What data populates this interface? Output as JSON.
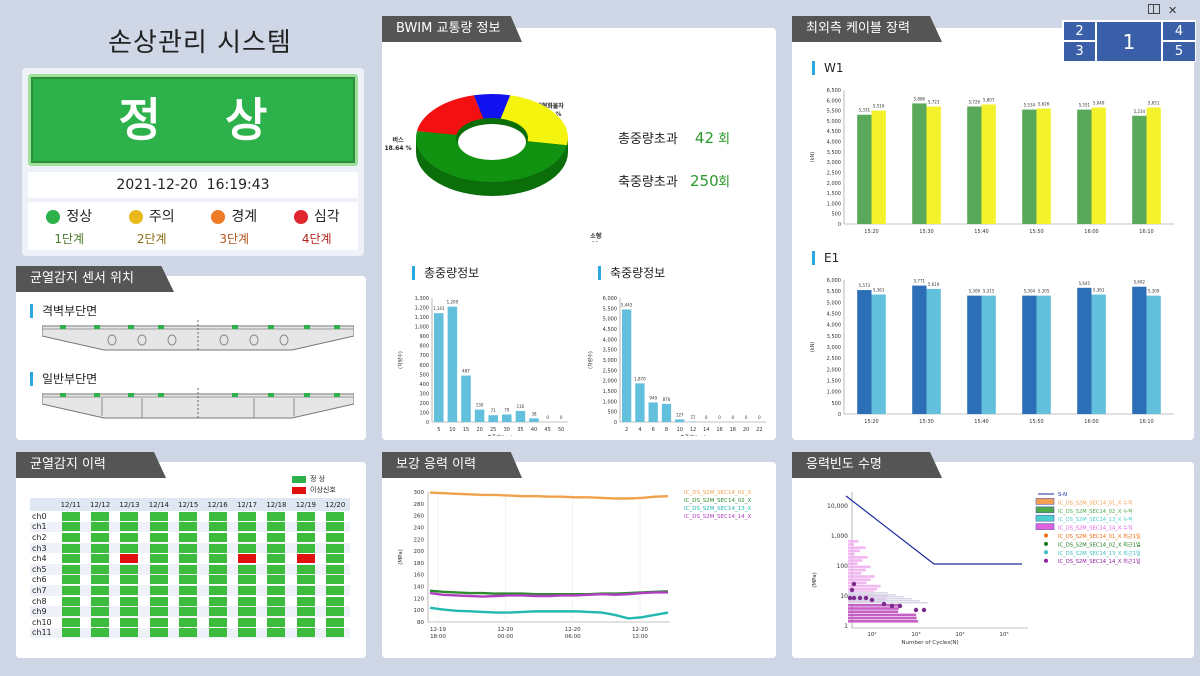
{
  "system_title": "손상관리 시스템",
  "status_label": "정    상",
  "timestamp": "2021-12-20  16:19:43",
  "colors": {
    "normal": "#2db14a",
    "caution": "#e8b81c",
    "warning": "#ef7a28",
    "severe": "#e0262e",
    "accent": "#2aa7df",
    "bar_green": "#5aa85a",
    "bar_yellow": "#f4f22a",
    "bar_blue": "#2c6fb6",
    "bar_cyan": "#62c0dc"
  },
  "stages": [
    {
      "name": "정상",
      "level": "1단계",
      "color": "#2db14a",
      "text_color": "#4b7a2a"
    },
    {
      "name": "주의",
      "level": "2단계",
      "color": "#e8b81c",
      "text_color": "#8a6d14"
    },
    {
      "name": "경계",
      "level": "3단계",
      "color": "#ef7a28",
      "text_color": "#b2541b"
    },
    {
      "name": "심각",
      "level": "4단계",
      "color": "#e0262e",
      "text_color": "#b2261e"
    }
  ],
  "window_icons": {
    "layout": "layout-icon",
    "close": "close-icon"
  },
  "layout_selector": [
    "2",
    "3",
    "1",
    "4",
    "5"
  ],
  "sensor_panel": {
    "title": "균열감지 센서 위치",
    "sections": [
      "격벽부단면",
      "일반부단면"
    ]
  },
  "history_panel": {
    "title": "균열감지 이력",
    "legend": [
      "정 상",
      "이상신호"
    ],
    "dates": [
      "12/11",
      "12/12",
      "12/13",
      "12/14",
      "12/15",
      "12/16",
      "12/17",
      "12/18",
      "12/19",
      "12/20"
    ],
    "channels": [
      "ch0",
      "ch1",
      "ch2",
      "ch3",
      "ch4",
      "ch5",
      "ch6",
      "ch7",
      "ch8",
      "ch9",
      "ch10",
      "ch11"
    ],
    "abnormal": [
      {
        "ch": 4,
        "date": 2
      },
      {
        "ch": 4,
        "date": 6
      },
      {
        "ch": 4,
        "date": 8
      }
    ]
  },
  "bwim_panel": {
    "title": "BWIM 교통량 정보",
    "stats": [
      {
        "label": "총중량초과",
        "value": "42",
        "unit": "회"
      },
      {
        "label": "축중량초과",
        "value": "250",
        "unit": "회"
      }
    ]
  },
  "cable_panel": {
    "title": "최외측 케이블 장력"
  },
  "stress_panel": {
    "title": "보강 응력 이력"
  },
  "fatigue_panel": {
    "title": "응력빈도 수명"
  },
  "chart_data": [
    {
      "type": "pie",
      "donut": true,
      "slices": [
        {
          "label": "대형화물차",
          "value": 7.72,
          "pct": "7.72 %",
          "color": "#1010f0"
        },
        {
          "label": "중형화물차",
          "value": 23.76,
          "pct": "23.76 %",
          "color": "#f4f40e"
        },
        {
          "label": "소형화물차",
          "value": 49.87,
          "pct": "49.87 %",
          "color": "#119311"
        },
        {
          "label": "버스",
          "value": 18.64,
          "pct": "18.64 %",
          "color": "#f21010"
        }
      ]
    },
    {
      "type": "bar",
      "title": "총중량정보",
      "xlabel": "총중량(ton)",
      "ylabel": "(차량수)",
      "ylim": [
        0,
        1300
      ],
      "yticks": [
        "0",
        "100",
        "200",
        "300",
        "400",
        "500",
        "600",
        "700",
        "800",
        "900",
        "1,000",
        "1,100",
        "1,200",
        "1,300"
      ],
      "categories": [
        "5",
        "10",
        "15",
        "20",
        "25",
        "30",
        "35",
        "40",
        "45",
        "50"
      ],
      "values": [
        1141,
        1209,
        487,
        130,
        71,
        79,
        116,
        38,
        0,
        0
      ],
      "labels": [
        "1,141",
        "1,209",
        "487",
        "130",
        "71",
        "79",
        "116",
        "38",
        "0",
        "0"
      ]
    },
    {
      "type": "bar",
      "title": "축중량정보",
      "xlabel": "축중량(ton)",
      "ylabel": "(차량수)",
      "ylim": [
        0,
        6000
      ],
      "yticks": [
        "0",
        "500",
        "1,000",
        "1,500",
        "2,000",
        "2,500",
        "3,000",
        "3,500",
        "4,000",
        "4,500",
        "5,000",
        "5,500",
        "6,000"
      ],
      "categories": [
        "2",
        "4",
        "6",
        "8",
        "10",
        "12",
        "14",
        "16",
        "18",
        "20",
        "22"
      ],
      "values": [
        5443,
        1870,
        949,
        876,
        127,
        21,
        0,
        0,
        0,
        0,
        0
      ],
      "labels": [
        "5,443",
        "1,870",
        "949",
        "876",
        "127",
        "21",
        "0",
        "0",
        "0",
        "0",
        "0"
      ]
    },
    {
      "type": "bar",
      "title": "W1",
      "ylabel": "(kN)",
      "ylim": [
        0,
        6500
      ],
      "yticks": [
        "0",
        "500",
        "1,000",
        "1,500",
        "2,000",
        "2,500",
        "3,000",
        "3,500",
        "4,000",
        "4,500",
        "5,000",
        "5,500",
        "6,000",
        "6,500"
      ],
      "categories": [
        "15:20",
        "15:30",
        "15:40",
        "15:50",
        "16:00",
        "16:10"
      ],
      "series": [
        {
          "values": [
            5300,
            5850,
            5700,
            5550,
            5550,
            5250
          ],
          "labels": [
            "5,331",
            "5,886",
            "5,726",
            "5,534",
            "5,551",
            "5,234"
          ]
        },
        {
          "values": [
            5500,
            5700,
            5800,
            5600,
            5650,
            5650
          ],
          "labels": [
            "5,516",
            "5,723",
            "5,807",
            "5,626",
            "5,649",
            "5,651"
          ]
        }
      ]
    },
    {
      "type": "bar",
      "title": "E1",
      "ylabel": "(kN)",
      "ylim": [
        0,
        6000
      ],
      "yticks": [
        "0",
        "500",
        "1,000",
        "1,500",
        "2,000",
        "2,500",
        "3,000",
        "3,500",
        "4,000",
        "4,500",
        "5,000",
        "5,500",
        "6,000"
      ],
      "categories": [
        "15:20",
        "15:30",
        "15:40",
        "15:50",
        "16:00",
        "16:10"
      ],
      "series": [
        {
          "values": [
            5550,
            5750,
            5300,
            5300,
            5650,
            5700
          ],
          "labels": [
            "5,573",
            "5,771",
            "5,309",
            "5,304",
            "5,645",
            "5,692"
          ]
        },
        {
          "values": [
            5350,
            5600,
            5300,
            5300,
            5350,
            5300
          ],
          "labels": [
            "5,361",
            "5,619",
            "5,315",
            "5,305",
            "5,361",
            "5,309"
          ]
        }
      ]
    },
    {
      "type": "line",
      "ylabel": "(MPa)",
      "ylim": [
        80,
        300
      ],
      "yticks": [
        "80",
        "90",
        "100",
        "110",
        "120",
        "130",
        "140",
        "150",
        "160",
        "170",
        "180",
        "190",
        "200",
        "210",
        "220",
        "230",
        "240",
        "250",
        "260",
        "270",
        "280",
        "290",
        "300"
      ],
      "xticks": [
        "12-19\n18:00",
        "12-20\n00:00",
        "12-20\n06:00",
        "12-20\n12:00"
      ],
      "series": [
        {
          "name": "IC_DS_S2M_SEC14_01_X",
          "color": "#f0a24a",
          "values": [
            299,
            298,
            297,
            296,
            295,
            295,
            294,
            293,
            293,
            292,
            292,
            291,
            291,
            290,
            289,
            289,
            290,
            292,
            293
          ]
        },
        {
          "name": "IC_DS_S2M_SEC14_02_X",
          "color": "#2e8a2e",
          "values": [
            133,
            131,
            130,
            129,
            129,
            128,
            128,
            128,
            127,
            127,
            127,
            127,
            127,
            128,
            128,
            129,
            130,
            131,
            132
          ]
        },
        {
          "name": "IC_DS_S2M_SEC14_13_X",
          "color": "#20b8b0",
          "values": [
            104,
            101,
            99,
            98,
            97,
            96,
            96,
            97,
            98,
            98,
            98,
            98,
            97,
            96,
            92,
            86,
            88,
            92,
            96
          ]
        },
        {
          "name": "IC_DS_S2M_SEC14_14_X",
          "color": "#b040c0",
          "values": [
            129,
            126,
            125,
            124,
            123,
            124,
            125,
            125,
            124,
            124,
            125,
            125,
            126,
            127,
            126,
            127,
            129,
            130,
            130
          ]
        }
      ]
    },
    {
      "type": "scatter",
      "xlabel": "Number of Cycles(N)",
      "ylabel": "(MPa)",
      "yticks": [
        "1",
        "10",
        "100",
        "1,000",
        "10,000"
      ],
      "xticks": [
        "10²",
        "10³",
        "10⁴",
        "10⁵"
      ],
      "legend": [
        {
          "name": "S-N",
          "color": "#1c2b9c",
          "kind": "line"
        },
        {
          "name": "IC_DS_S2M_SEC14_01_X 누적",
          "color": "#f4a050",
          "kind": "box"
        },
        {
          "name": "IC_DS_S2M_SEC14_02_X 누적",
          "color": "#4caa4c",
          "kind": "box"
        },
        {
          "name": "IC_DS_S2M_SEC14_13_X 누적",
          "color": "#4cd0d0",
          "kind": "box"
        },
        {
          "name": "IC_DS_S2M_SEC14_14_X 누적",
          "color": "#e060e0",
          "kind": "box"
        },
        {
          "name": "IC_DS_S2M_SEC14_01_X 최근1일",
          "color": "#f07010",
          "kind": "dot"
        },
        {
          "name": "IC_DS_S2M_SEC14_02_X 최근1일",
          "color": "#1e7a1e",
          "kind": "dot"
        },
        {
          "name": "IC_DS_S2M_SEC14_13_X 최근1일",
          "color": "#40c0c0",
          "kind": "dot"
        },
        {
          "name": "IC_DS_S2M_SEC14_14_X 최근1일",
          "color": "#9020a0",
          "kind": "dot"
        }
      ]
    }
  ]
}
